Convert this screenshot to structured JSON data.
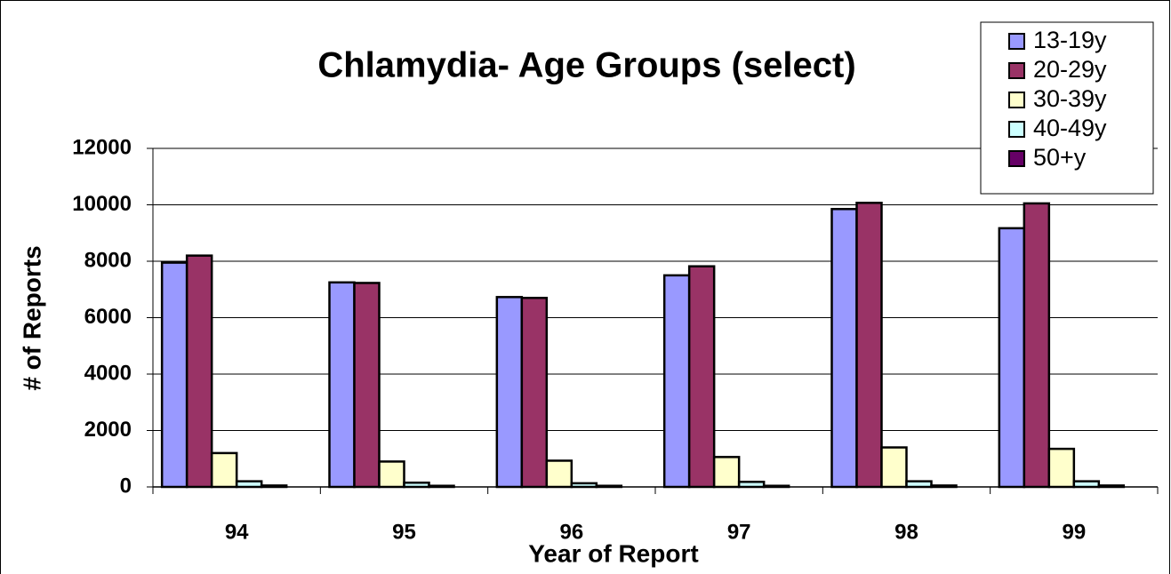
{
  "chart_data": {
    "type": "bar",
    "title": "Chlamydia- Age Groups (select)",
    "x_label": "Year of Report",
    "y_label": "# of Reports",
    "categories": [
      "94",
      "95",
      "96",
      "97",
      "98",
      "99"
    ],
    "series": [
      {
        "name": "13-19y",
        "color": "#9999ff",
        "values": [
          7950,
          7250,
          6730,
          7500,
          9850,
          9170
        ]
      },
      {
        "name": "20-29y",
        "color": "#993366",
        "values": [
          8200,
          7230,
          6700,
          7820,
          10070,
          10050
        ]
      },
      {
        "name": "30-39y",
        "color": "#ffffcc",
        "values": [
          1200,
          900,
          930,
          1060,
          1400,
          1350
        ]
      },
      {
        "name": "40-49y",
        "color": "#ccffff",
        "values": [
          200,
          150,
          130,
          180,
          200,
          200
        ]
      },
      {
        "name": "50+y",
        "color": "#660066",
        "values": [
          50,
          40,
          40,
          40,
          50,
          50
        ]
      }
    ],
    "ylim": [
      0,
      12000
    ],
    "yticks": [
      0,
      2000,
      4000,
      6000,
      8000,
      10000,
      12000
    ],
    "grid": true,
    "legend": "top-right"
  }
}
